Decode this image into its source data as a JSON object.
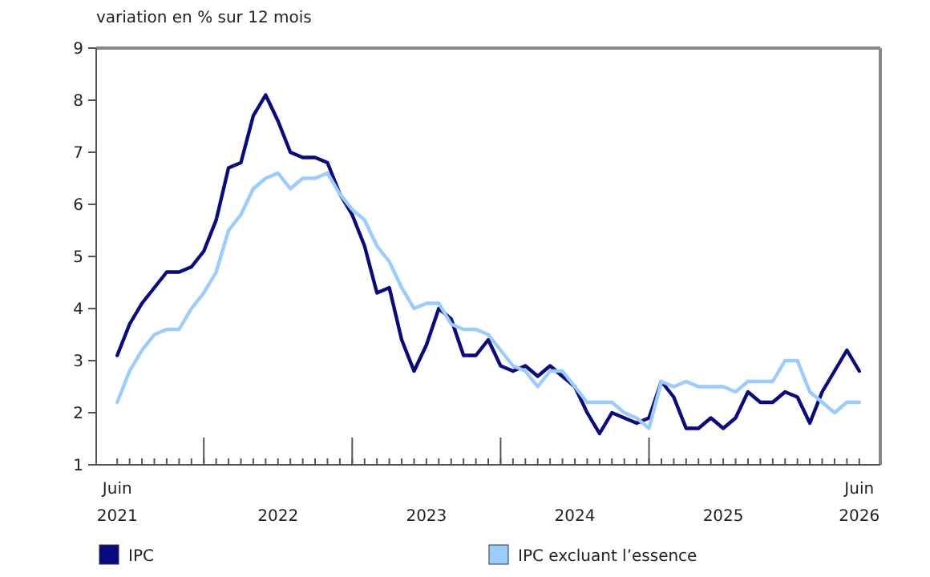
{
  "chart_data": {
    "type": "line",
    "ylabel": "variation en % sur 12 mois",
    "categories": [
      "Juin 2021",
      null,
      null,
      null,
      null,
      null,
      null,
      null,
      null,
      null,
      null,
      null,
      null,
      "2022",
      null,
      null,
      null,
      null,
      null,
      null,
      null,
      null,
      null,
      null,
      null,
      "2023",
      null,
      null,
      null,
      null,
      null,
      null,
      null,
      null,
      null,
      null,
      null,
      "2024",
      null,
      null,
      null,
      null,
      null,
      null,
      null,
      null,
      null,
      null,
      null,
      "2025",
      null,
      null,
      null,
      null,
      null,
      null,
      null,
      null,
      null,
      null,
      "Juin 2026"
    ],
    "series": [
      {
        "name": "IPC",
        "color": "#0a0a80",
        "values": [
          3.1,
          3.7,
          4.1,
          4.4,
          4.7,
          4.7,
          4.8,
          5.1,
          5.7,
          6.7,
          6.8,
          7.7,
          8.1,
          7.6,
          7.0,
          6.9,
          6.9,
          6.8,
          6.2,
          5.8,
          5.2,
          4.3,
          4.4,
          3.4,
          2.8,
          3.3,
          4.0,
          3.8,
          3.1,
          3.1,
          3.4,
          2.9,
          2.8,
          2.9,
          2.7,
          2.9,
          2.7,
          2.5,
          2.0,
          1.6,
          2.0,
          1.9,
          1.8,
          1.9,
          2.6,
          2.3,
          1.7,
          1.7,
          1.9,
          1.7,
          1.9,
          2.4,
          2.2,
          2.2,
          2.4,
          2.3,
          1.8,
          2.4,
          2.8,
          3.2,
          2.8
        ]
      },
      {
        "name": "IPC excluant l’essence",
        "color": "#99ccff",
        "values": [
          2.2,
          2.8,
          3.2,
          3.5,
          3.6,
          3.6,
          4.0,
          4.3,
          4.7,
          5.5,
          5.8,
          6.3,
          6.5,
          6.6,
          6.3,
          6.5,
          6.5,
          6.6,
          6.2,
          5.9,
          5.7,
          5.2,
          4.9,
          4.4,
          4.0,
          4.1,
          4.1,
          3.7,
          3.6,
          3.6,
          3.5,
          3.2,
          2.9,
          2.8,
          2.5,
          2.8,
          2.8,
          2.5,
          2.2,
          2.2,
          2.2,
          2.0,
          1.9,
          1.7,
          2.6,
          2.5,
          2.6,
          2.5,
          2.5,
          2.5,
          2.4,
          2.6,
          2.6,
          2.6,
          3.0,
          3.0,
          2.4,
          2.2,
          2.0,
          2.2,
          2.2
        ]
      }
    ],
    "ylim": [
      1,
      9
    ],
    "yticks": [
      1,
      2,
      3,
      4,
      5,
      6,
      7,
      8,
      9
    ],
    "grid": false,
    "legend": "bottom",
    "line_style": "solid",
    "marker": "none"
  }
}
